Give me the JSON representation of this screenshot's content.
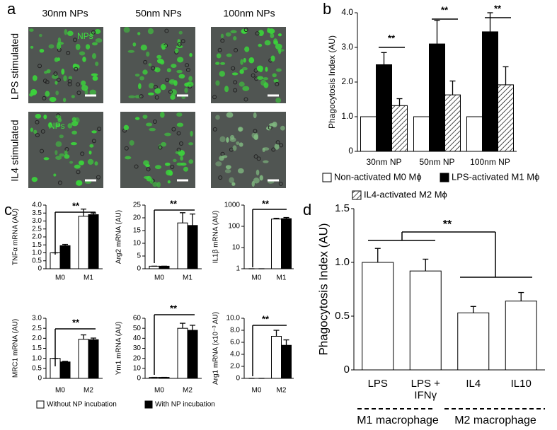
{
  "panel_labels": [
    "a",
    "b",
    "c",
    "d"
  ],
  "panel_a": {
    "columns": [
      "30nm NPs",
      "50nm NPs",
      "100nm NPs"
    ],
    "rows": [
      "LPS stimulated",
      "IL4 stimulated"
    ],
    "image_label": "NPs"
  },
  "chart_data": [
    {
      "type": "bar",
      "ylabel": "Phagocytosis Index (AU)",
      "categories": [
        "30nm NP",
        "50nm NP",
        "100nm NP"
      ],
      "series": [
        {
          "name": "Non-activated M0 Mϕ",
          "color": "#ffffff",
          "values": [
            1,
            1,
            1
          ]
        },
        {
          "name": "LPS-activated M1 Mϕ",
          "color": "#000000",
          "values": [
            2.5,
            3.1,
            3.45
          ],
          "errors": [
            0.35,
            0.68,
            0.55
          ]
        },
        {
          "name": "IL4-activated M2 Mϕ",
          "color": "#ffffff",
          "hatch": true,
          "values": [
            1.32,
            1.63,
            1.92
          ],
          "errors": [
            0.2,
            0.4,
            0.52
          ]
        }
      ],
      "ylim": [
        0,
        4
      ],
      "yticks": [
        0,
        {
          "value": 1,
          "label": "1.0"
        },
        {
          "value": 2,
          "label": "2.0"
        },
        {
          "value": 3,
          "label": "3.0"
        },
        {
          "value": 4,
          "label": "4.0"
        }
      ],
      "annotations": [
        "**",
        "**",
        "**"
      ]
    },
    {
      "type": "bar",
      "ylabel": "TNFα mRNA (AU)",
      "categories": [
        "M0",
        "M1"
      ],
      "series": [
        {
          "name": "Without NP incubation",
          "color": "#ffffff",
          "values": [
            1.0,
            3.3
          ],
          "errors": [
            0,
            0.45
          ]
        },
        {
          "name": "With NP incubation",
          "color": "#000000",
          "values": [
            1.45,
            3.4
          ],
          "errors": [
            0.08,
            0.1
          ]
        }
      ],
      "ylim": [
        0,
        4
      ],
      "yticks": [
        0,
        0.5,
        {
          "value": 1,
          "label": "1.0"
        },
        1.5,
        {
          "value": 2,
          "label": "2.0"
        },
        2.5,
        {
          "value": 3,
          "label": "3.0"
        },
        3.5,
        {
          "value": 4,
          "label": "4.0"
        }
      ],
      "annotations": [
        "**"
      ]
    },
    {
      "type": "bar",
      "ylabel": "Arg2 mRNA (AU)",
      "categories": [
        "M0",
        "M1"
      ],
      "series": [
        {
          "color": "#ffffff",
          "values": [
            1,
            18
          ],
          "errors": [
            0,
            4
          ]
        },
        {
          "color": "#000000",
          "values": [
            1,
            17
          ],
          "errors": [
            0,
            4.5
          ]
        }
      ],
      "ylim": [
        0,
        25
      ],
      "yticks": [
        0,
        5,
        10,
        15,
        20,
        25
      ],
      "annotations": [
        "**"
      ]
    },
    {
      "type": "bar",
      "ylabel": "IL1β mRNA (AU)",
      "categories": [
        "M0",
        "M1"
      ],
      "log_scale": true,
      "series": [
        {
          "color": "#ffffff",
          "values": [
            1,
            220
          ],
          "errors": [
            0,
            20
          ]
        },
        {
          "color": "#000000",
          "values": [
            1,
            230
          ],
          "errors": [
            0,
            30
          ]
        }
      ],
      "ylim": [
        1,
        1000
      ],
      "yticks": [
        1,
        10,
        100,
        1000
      ],
      "annotations": [
        "**"
      ]
    },
    {
      "type": "bar",
      "ylabel": "MRC1 mRNA (AU)",
      "categories": [
        "M0",
        "M2"
      ],
      "series": [
        {
          "color": "#ffffff",
          "values": [
            1,
            1.95
          ],
          "errors": [
            0,
            0.22
          ]
        },
        {
          "color": "#000000",
          "values": [
            0.82,
            1.93
          ],
          "errors": [
            0.03,
            0.08
          ]
        }
      ],
      "ylim": [
        0,
        3
      ],
      "yticks": [
        0,
        0.5,
        {
          "value": 1,
          "label": "1.0"
        },
        1.5,
        {
          "value": 2,
          "label": "2.0"
        },
        2.5,
        {
          "value": 3,
          "label": "3.0"
        }
      ],
      "annotations": [
        "**"
      ]
    },
    {
      "type": "bar",
      "ylabel": "Ym1 mRNA (AU)",
      "categories": [
        "M0",
        "M2"
      ],
      "series": [
        {
          "color": "#ffffff",
          "values": [
            1,
            50
          ],
          "errors": [
            0,
            5
          ]
        },
        {
          "color": "#000000",
          "values": [
            1,
            48
          ],
          "errors": [
            0,
            5
          ]
        }
      ],
      "ylim": [
        0,
        60
      ],
      "yticks": [
        0,
        10,
        20,
        30,
        40,
        50,
        60
      ],
      "annotations": [
        "**"
      ]
    },
    {
      "type": "bar",
      "ylabel": "Arg1 mRNA (x10⁻³ AU)",
      "categories": [
        "M0",
        "M2"
      ],
      "series": [
        {
          "color": "#ffffff",
          "values": [
            0,
            7
          ],
          "errors": [
            0,
            1
          ]
        },
        {
          "color": "#000000",
          "values": [
            0,
            5.5
          ],
          "errors": [
            0,
            0.9
          ]
        }
      ],
      "ylim": [
        0,
        10
      ],
      "yticks": [
        0,
        {
          "value": 2,
          "label": "2.0"
        },
        {
          "value": 4,
          "label": "4.0"
        },
        {
          "value": 6,
          "label": "6.0"
        },
        {
          "value": 8,
          "label": "8.0"
        },
        {
          "value": 10,
          "label": "10.0"
        }
      ],
      "annotations": [
        "**"
      ]
    },
    {
      "type": "bar",
      "ylabel": "Phagocytosis Index (AU)",
      "categories": [
        "LPS",
        "LPS + IFNγ",
        "IL4",
        "IL10"
      ],
      "series": [
        {
          "color": "#ffffff",
          "values": [
            1.0,
            0.92,
            0.53,
            0.64
          ],
          "errors": [
            0.13,
            0.11,
            0.06,
            0.08
          ]
        }
      ],
      "ylim": [
        0,
        1.5
      ],
      "yticks": [
        0,
        0.5,
        {
          "value": 1,
          "label": "1.0"
        },
        1.5
      ],
      "groups": [
        "M1 macrophage",
        "M2 macrophage"
      ],
      "annotations": [
        "**"
      ]
    }
  ]
}
